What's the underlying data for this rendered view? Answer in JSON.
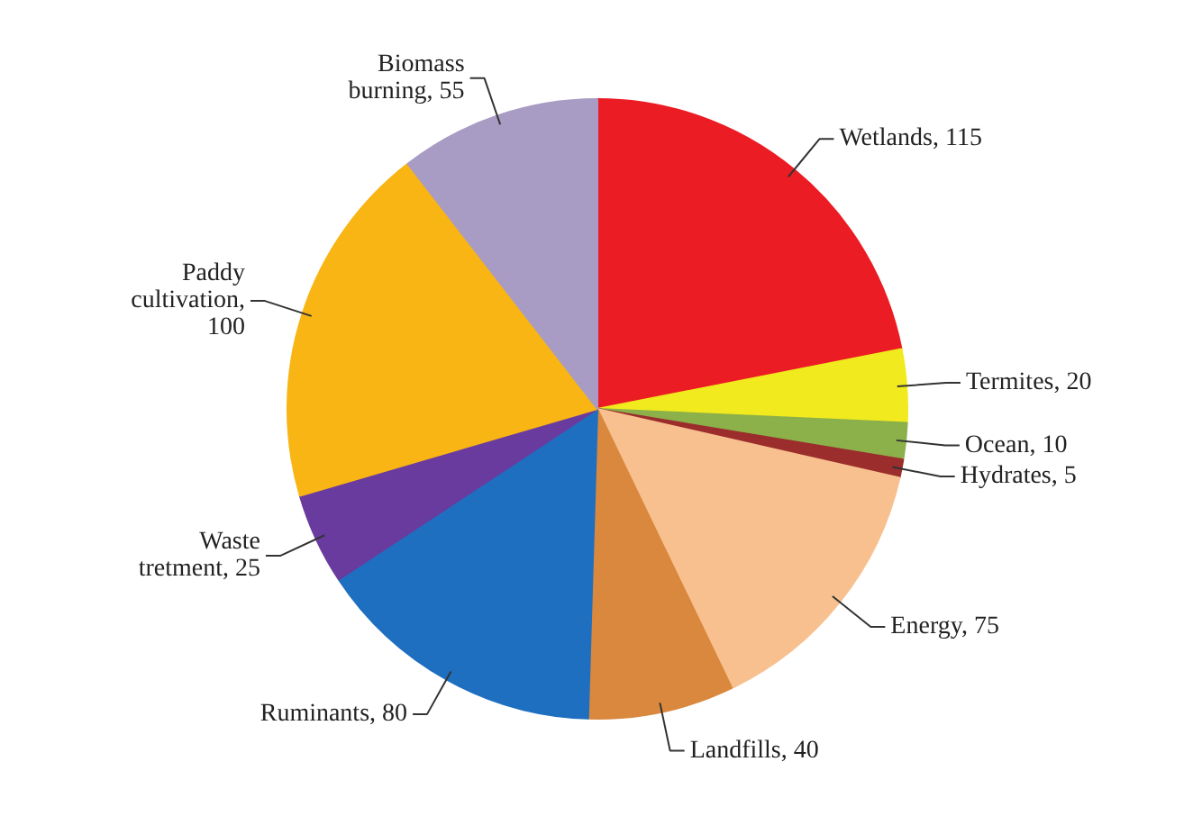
{
  "chart_data": {
    "type": "pie",
    "categories": [
      "Wetlands, 115",
      "Termites, 20",
      "Ocean, 10",
      "Hydrates, 5",
      "Energy, 75",
      "Landfills, 40",
      "Ruminants, 80",
      "Waste tretment, 25",
      "Paddy cultivation, 100",
      "Biomass burning, 55"
    ],
    "values": [
      115,
      20,
      10,
      5,
      75,
      40,
      80,
      25,
      100,
      55
    ],
    "colors": [
      "#ec1c24",
      "#f0ea1e",
      "#8cb04a",
      "#9b2d2d",
      "#f8c08e",
      "#d9883e",
      "#1e6fc0",
      "#6a3b9e",
      "#f8b514",
      "#a89cc4"
    ]
  }
}
